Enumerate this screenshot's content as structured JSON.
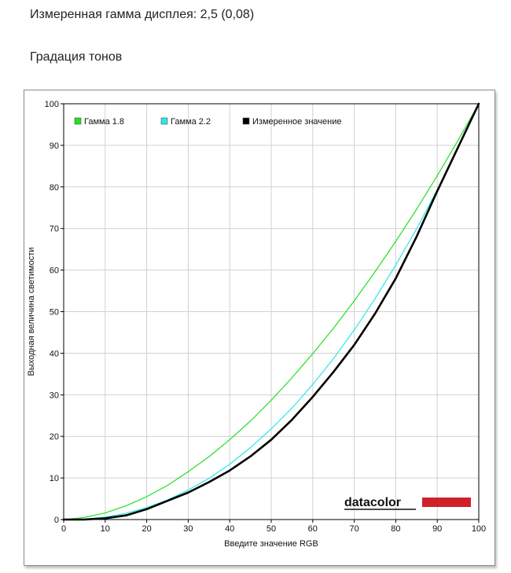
{
  "header": {
    "measured_gamma": "Измеренная гамма дисплея: 2,5 (0,08)",
    "section_title": "Градация тонов"
  },
  "colors": {
    "gamma18": "#22e022",
    "gamma22": "#2fe6e6",
    "measured": "#000000",
    "grid": "#d0d0d0",
    "logo_bar": "#d0202a"
  },
  "logo": {
    "text": "datacolor"
  },
  "chart_data": {
    "type": "line",
    "xlabel": "Введите значение RGB",
    "ylabel": "Выходная величина светимости",
    "xlim": [
      0,
      100
    ],
    "ylim": [
      0,
      100
    ],
    "xticks": [
      0,
      10,
      20,
      30,
      40,
      50,
      60,
      70,
      80,
      90,
      100
    ],
    "yticks": [
      0,
      10,
      20,
      30,
      40,
      50,
      60,
      70,
      80,
      90,
      100
    ],
    "grid": true,
    "legend_position": "top-left",
    "series": [
      {
        "name": "Гамма 1.8",
        "color": "#22e022",
        "x": [
          0,
          5,
          10,
          15,
          20,
          25,
          30,
          35,
          40,
          45,
          50,
          55,
          60,
          65,
          70,
          75,
          80,
          85,
          90,
          95,
          100
        ],
        "y": [
          0,
          0.5,
          1.6,
          3.3,
          5.5,
          8.2,
          11.5,
          15.1,
          19.2,
          23.7,
          28.7,
          34.1,
          39.9,
          46.0,
          52.6,
          59.6,
          66.9,
          74.6,
          82.7,
          91.2,
          100
        ]
      },
      {
        "name": "Гамма 2.2",
        "color": "#2fe6e6",
        "x": [
          0,
          5,
          10,
          15,
          20,
          25,
          30,
          35,
          40,
          45,
          50,
          55,
          60,
          65,
          70,
          75,
          80,
          85,
          90,
          95,
          100
        ],
        "y": [
          0,
          0.1,
          0.6,
          1.5,
          2.9,
          4.7,
          7.1,
          9.9,
          13.3,
          17.3,
          21.8,
          26.8,
          32.5,
          38.7,
          45.6,
          53.1,
          61.2,
          69.9,
          79.3,
          89.3,
          100
        ]
      },
      {
        "name": "Измеренное значение",
        "color": "#000000",
        "x": [
          0,
          5,
          10,
          15,
          20,
          25,
          30,
          35,
          40,
          45,
          50,
          55,
          60,
          65,
          70,
          75,
          80,
          85,
          90,
          95,
          100
        ],
        "y": [
          0,
          0,
          0.3,
          1.0,
          2.5,
          4.5,
          6.5,
          9.0,
          11.8,
          15.2,
          19.2,
          24.0,
          29.5,
          35.5,
          42.0,
          49.5,
          58.0,
          68.0,
          79.0,
          89.5,
          100
        ]
      }
    ]
  }
}
